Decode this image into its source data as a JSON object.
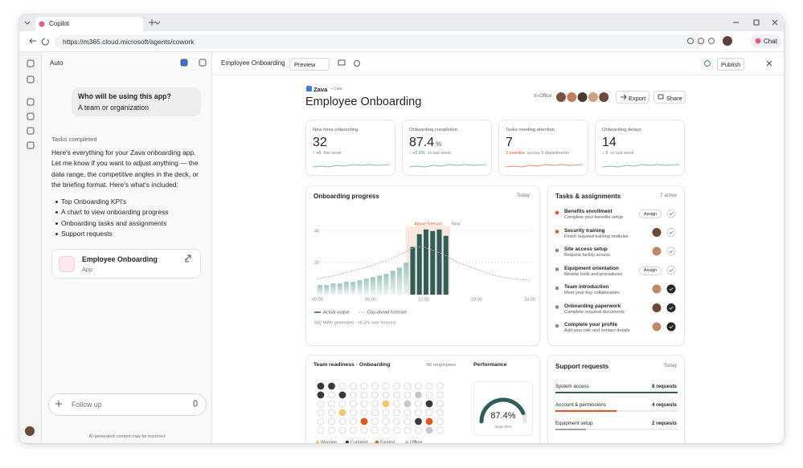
{
  "browser": {
    "tab_title": "Copilot",
    "url": "https://m365.cloud.microsoft/agents/cowork",
    "chat_button": "Chat"
  },
  "sidebar": {
    "mode": "Auto",
    "question": "Who will be using this app?",
    "answer": "A team or organization",
    "tasks_completed": "Tasks completed",
    "intro": "Here's everything for your Zava onboarding app. Let me know if you want to adjust anything — the data range, the competitive angles in the deck, or the briefing format. Here's what's included:",
    "bullets": [
      "Top Onboarding KPI's",
      "A chart to view onboarding progress",
      "Onboarding tasks and assignments",
      "Support requests"
    ],
    "artifact": {
      "title": "Employee Onboarding",
      "kind": "App"
    },
    "input_placeholder": "Follow up",
    "disclaimer": "AI-generated content may be incorrect"
  },
  "toolbar": {
    "title": "Employee Onboarding",
    "preview": "Preview",
    "publish": "Publish"
  },
  "dashboard": {
    "brand": "Zava",
    "status": "• Live",
    "title": "Employee Onboarding",
    "presence": "In-Office",
    "export": "Export",
    "share": "Share",
    "kpis": [
      {
        "label": "New hires onboarding",
        "value": 32,
        "delta": "↑ +6",
        "note": "this week",
        "color": "#2e7d6e"
      },
      {
        "label": "Onboarding completion",
        "value": 87.4,
        "unit": "%",
        "delta": "↑ +2.1%",
        "note": "vs last week",
        "color": "#2e7d6e"
      },
      {
        "label": "Tasks needing attention",
        "value": 7,
        "delta": "3 overdue",
        "note": "across 5 departments",
        "color": "#e0581c"
      },
      {
        "label": "Onboarding delays",
        "value": 14,
        "delta": "↓ 3",
        "note": "vs last week",
        "color": "#2e7d6e"
      }
    ],
    "progress": {
      "type": "bar",
      "title": "Onboarding progress",
      "period": "Today",
      "annotation": "Above forecast",
      "now_label": "Now",
      "xlim": [
        0,
        24
      ],
      "xticks": [
        {
          "value": 0,
          "label": "00:00"
        },
        {
          "value": 6,
          "label": "06:00"
        },
        {
          "value": 12,
          "label": "12:00"
        },
        {
          "value": 18,
          "label": "18:00"
        },
        {
          "value": 24,
          "label": "24:00"
        }
      ],
      "ylim": [
        0,
        48
      ],
      "yticks": [
        20,
        40
      ],
      "highlight": [
        10,
        15
      ],
      "bar_x": [
        0,
        0.75,
        1.5,
        2.25,
        3,
        3.75,
        4.5,
        5.25,
        6,
        6.75,
        7.5,
        8.25,
        9,
        9.75,
        10.5,
        11.25,
        12,
        12.75,
        13.5,
        14.25
      ],
      "bar_values": [
        6,
        6,
        7,
        7,
        8,
        8,
        9,
        10,
        11,
        12,
        13,
        15,
        17,
        20,
        30,
        38,
        41,
        40,
        41,
        37
      ],
      "forecast_x": [
        0,
        2,
        4,
        6,
        8,
        10,
        11,
        12,
        14,
        16,
        18,
        20,
        22,
        24
      ],
      "forecast": [
        10,
        12,
        15,
        18,
        22,
        27,
        30,
        30,
        26,
        20,
        16,
        12,
        10,
        9
      ],
      "bar_color": "#2f5f5c",
      "legend": [
        "Actual output",
        "Day-ahead forecast"
      ],
      "footnote": "842 MWh generated · +6.2% over forecast"
    },
    "tasks": {
      "title": "Tasks & assignments",
      "count": "7 active",
      "items": [
        {
          "title": "Benefits enrollment",
          "subtitle": "Complete your benefits setup",
          "color": "#e0581c",
          "action": "Assign",
          "done": false
        },
        {
          "title": "Security training",
          "subtitle": "Finish required training modules",
          "color": "#e0581c",
          "done": false
        },
        {
          "title": "Site access setup",
          "subtitle": "Request facility access",
          "color": "#8a8a8a",
          "done": false
        },
        {
          "title": "Equipment orientation",
          "subtitle": "Review tools and procedures",
          "color": "#8a8a8a",
          "action": "Assign",
          "done": false
        },
        {
          "title": "Team introduction",
          "subtitle": "Meet your key collaborators",
          "color": "#8a8a8a",
          "done": true
        },
        {
          "title": "Onboarding paperwork",
          "subtitle": "Complete required documents",
          "color": "#8a8a8a",
          "done": true
        },
        {
          "title": "Complete your profile",
          "subtitle": "Add your role and contact details",
          "color": "#8a8a8a",
          "done": true
        }
      ]
    },
    "readiness": {
      "title": "Team readiness · Onboarding",
      "count": "96 employees",
      "legend": [
        {
          "name": "Warning",
          "color": "#f5c76a"
        },
        {
          "name": "Curtailed",
          "color": "#3a3a3a"
        },
        {
          "name": "Faulted",
          "color": "#e0581c"
        },
        {
          "name": "Offline",
          "color": "#c8c8c8"
        }
      ]
    },
    "performance": {
      "title": "Performance",
      "value": 87.4,
      "label": "87.4%",
      "target": "target 90%"
    },
    "support": {
      "title": "Support requests",
      "period": "Today",
      "items": [
        {
          "name": "System access",
          "value": 8,
          "label": "8 requests",
          "color": "#2f5f5c"
        },
        {
          "name": "Account & permissions",
          "value": 4,
          "label": "4 requests",
          "color": "#e0581c"
        },
        {
          "name": "Equipment setup",
          "value": 2,
          "label": "2 requests",
          "color": "#a0a0a0"
        }
      ]
    }
  }
}
